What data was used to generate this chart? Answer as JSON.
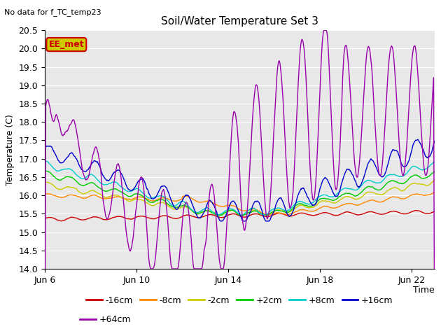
{
  "title": "Soil/Water Temperature Set 3",
  "subtitle": "No data for f_TC_temp23",
  "ylabel": "Temperature (C)",
  "xlabel": "Time",
  "ylim": [
    14.0,
    20.5
  ],
  "xlim": [
    0,
    17
  ],
  "xtick_positions": [
    0,
    4,
    8,
    12,
    16
  ],
  "xtick_labels": [
    "Jun 6",
    "Jun 10",
    "Jun 14",
    "Jun 18",
    "Jun 22"
  ],
  "ytick_positions": [
    14.0,
    14.5,
    15.0,
    15.5,
    16.0,
    16.5,
    17.0,
    17.5,
    18.0,
    18.5,
    19.0,
    19.5,
    20.0,
    20.5
  ],
  "colors": {
    "-16cm": "#cc0000",
    "-8cm": "#ff8800",
    "-2cm": "#cccc00",
    "+2cm": "#00cc00",
    "+8cm": "#00cccc",
    "+16cm": "#0000cc",
    "+64cm": "#9900aa"
  },
  "ee_met_bg": "#cccc00",
  "ee_met_fg": "#cc0000",
  "fig_bg": "#ffffff",
  "plot_bg": "#e8e8e8",
  "grid_color": "#ffffff",
  "title_fontsize": 11,
  "tick_fontsize": 9,
  "label_fontsize": 9,
  "legend_fontsize": 9
}
